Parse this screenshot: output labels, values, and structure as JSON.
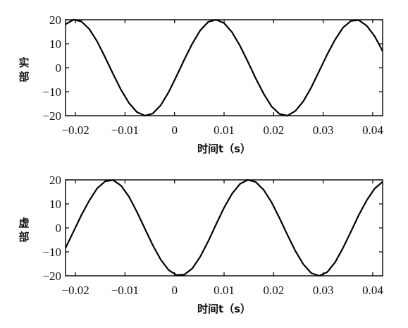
{
  "chart_data": [
    {
      "type": "line",
      "xlabel": "时间t（s）",
      "ylabel": "实部",
      "xlim": [
        -0.022,
        0.042
      ],
      "ylim": [
        -20,
        20
      ],
      "xticks": [
        -0.02,
        -0.01,
        0,
        0.01,
        0.02,
        0.03,
        0.04
      ],
      "xtick_labels": [
        "−0.02",
        "−0.01",
        "0",
        "0.01",
        "0.02",
        "0.03",
        "0.04"
      ],
      "yticks": [
        20,
        10,
        0,
        -10,
        -20
      ],
      "ytick_labels": [
        "20",
        "10",
        "0",
        "−10",
        "−20"
      ],
      "grid": false,
      "series": [
        {
          "x": [
            -0.022,
            -0.0204,
            -0.0188,
            -0.0172,
            -0.0156,
            -0.014,
            -0.0124,
            -0.0108,
            -0.0092,
            -0.0076,
            -0.006,
            -0.0044,
            -0.0028,
            -0.0012,
            0.0004,
            0.002,
            0.0036,
            0.0052,
            0.0068,
            0.0084,
            0.01,
            0.0116,
            0.0132,
            0.0148,
            0.0164,
            0.018,
            0.0196,
            0.0212,
            0.0228,
            0.0244,
            0.026,
            0.0276,
            0.0292,
            0.0308,
            0.0324,
            0.034,
            0.0356,
            0.0372,
            0.0388,
            0.0404,
            0.042
          ],
          "y": [
            18.1,
            20.0,
            19.3,
            16.1,
            10.9,
            4.3,
            -2.6,
            -9.2,
            -14.7,
            -18.5,
            -20.0,
            -19.1,
            -15.7,
            -10.2,
            -3.5,
            3.5,
            10.1,
            15.6,
            19.1,
            20.0,
            18.6,
            14.8,
            9.2,
            2.5,
            -4.5,
            -10.9,
            -16.2,
            -19.3,
            -20.0,
            -18.0,
            -14.0,
            -8.2,
            -1.4,
            5.5,
            11.7,
            16.7,
            19.5,
            19.8,
            17.5,
            13.1,
            6.9
          ]
        }
      ]
    },
    {
      "type": "line",
      "xlabel": "时间t（s）",
      "ylabel": "虚部",
      "xlim": [
        -0.022,
        0.042
      ],
      "ylim": [
        -20,
        20
      ],
      "xticks": [
        -0.02,
        -0.01,
        0,
        0.01,
        0.02,
        0.03,
        0.04
      ],
      "xtick_labels": [
        "−0.02",
        "−0.01",
        "0",
        "0.01",
        "0.02",
        "0.03",
        "0.04"
      ],
      "yticks": [
        20,
        10,
        0,
        -10,
        -20
      ],
      "ytick_labels": [
        "20",
        "10",
        "0",
        "−10",
        "−20"
      ],
      "grid": false,
      "series": [
        {
          "x": [
            -0.022,
            -0.0204,
            -0.0188,
            -0.0172,
            -0.0156,
            -0.014,
            -0.0124,
            -0.0108,
            -0.0092,
            -0.0076,
            -0.006,
            -0.0044,
            -0.0028,
            -0.0012,
            0.0004,
            0.002,
            0.0036,
            0.0052,
            0.0068,
            0.0084,
            0.01,
            0.0116,
            0.0132,
            0.0148,
            0.0164,
            0.018,
            0.0196,
            0.0212,
            0.0228,
            0.0244,
            0.026,
            0.0276,
            0.0292,
            0.0308,
            0.0324,
            0.034,
            0.0356,
            0.0372,
            0.0388,
            0.0404,
            0.042
          ],
          "y": [
            -8.4,
            -1.6,
            5.3,
            11.4,
            16.5,
            19.4,
            19.9,
            17.6,
            13.0,
            6.7,
            -0.3,
            -7.2,
            -13.2,
            -17.6,
            -19.7,
            -19.5,
            -16.9,
            -12.0,
            -5.6,
            1.5,
            8.4,
            14.2,
            18.3,
            20.0,
            19.1,
            15.8,
            10.6,
            4.0,
            -3.0,
            -9.7,
            -15.2,
            -18.9,
            -20.0,
            -18.5,
            -14.4,
            -8.4,
            -1.6,
            5.4,
            11.5,
            16.4,
            19.2
          ]
        }
      ]
    }
  ]
}
